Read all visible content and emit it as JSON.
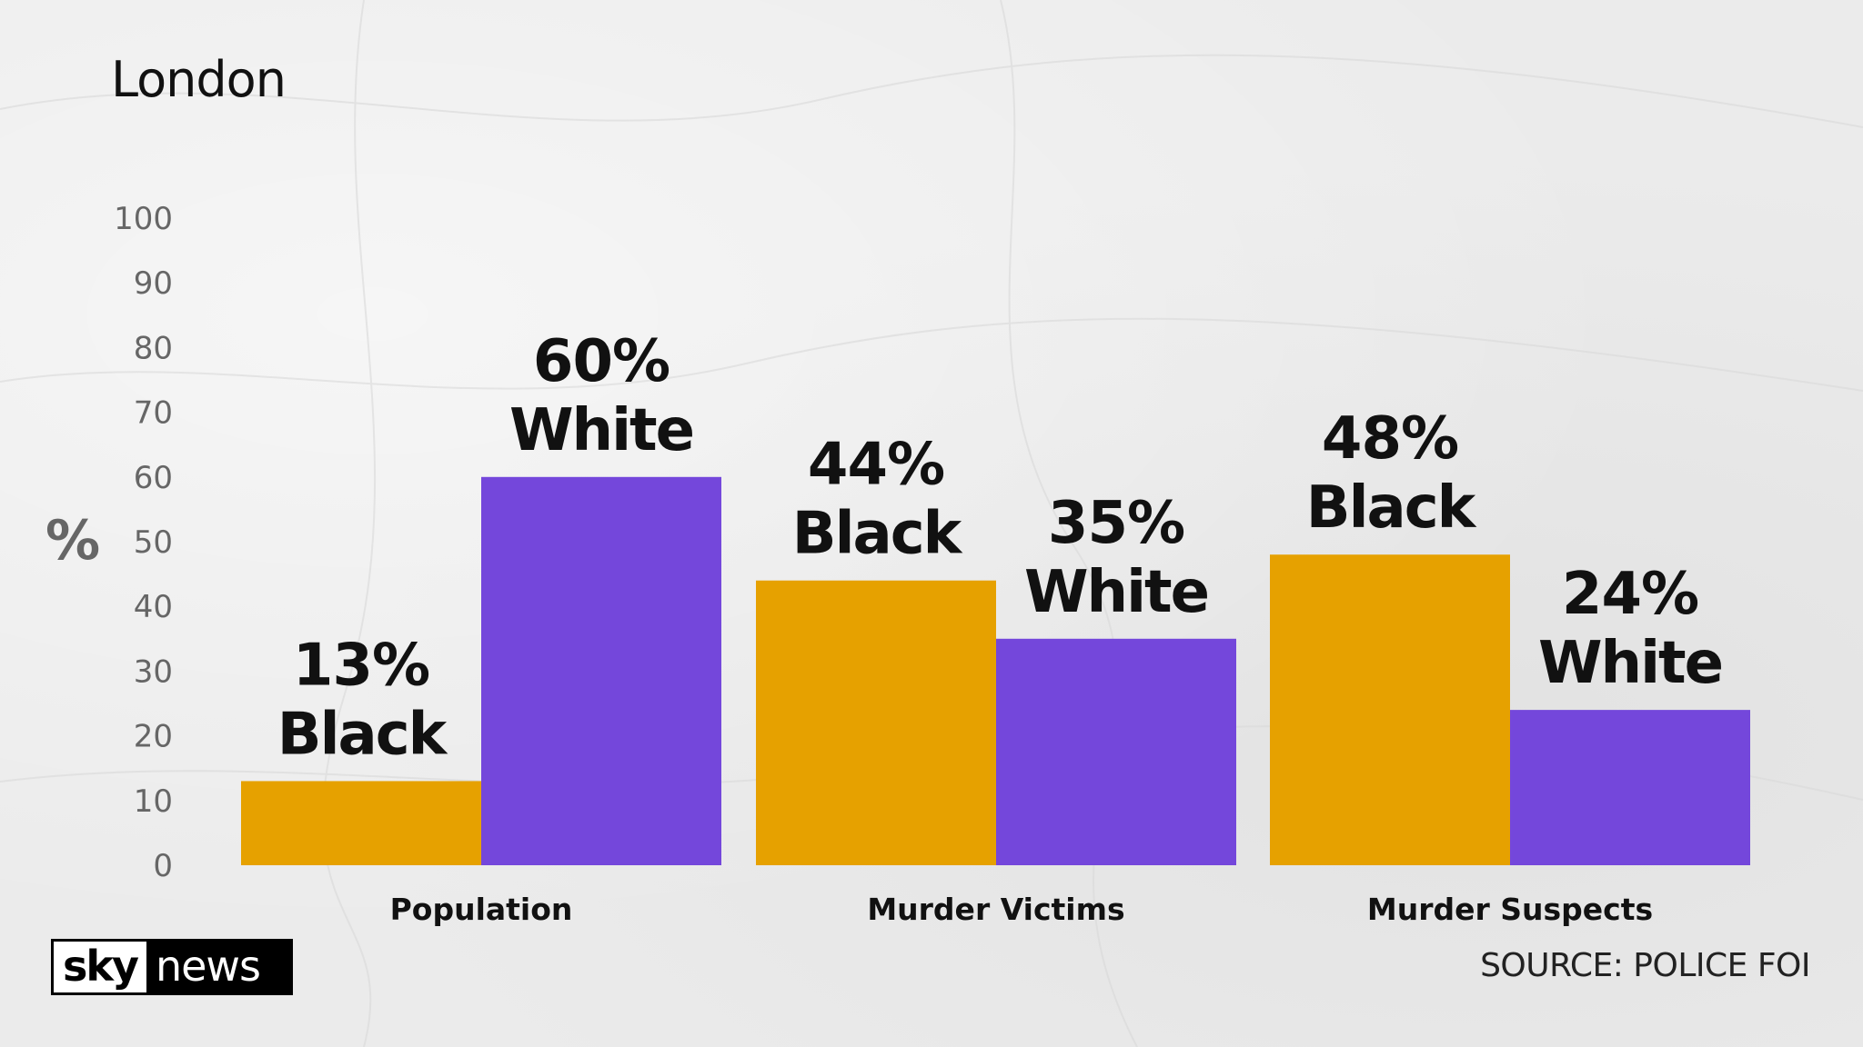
{
  "brand": {
    "sky": "sky",
    "news": "news"
  },
  "source": "SOURCE: POLICE FOI",
  "chart_data": {
    "type": "bar",
    "title": "London",
    "ylabel": "%",
    "ylim": [
      0,
      100
    ],
    "yticks": [
      0,
      10,
      20,
      30,
      40,
      50,
      60,
      70,
      80,
      90,
      100
    ],
    "categories": [
      "Population",
      "Murder Victims",
      "Murder Suspects"
    ],
    "series": [
      {
        "key": "black",
        "color": "#e6a100",
        "values": [
          13,
          44,
          48
        ],
        "labels": [
          [
            "13%",
            "Black"
          ],
          [
            "44%",
            "Black"
          ],
          [
            "48%",
            "Black"
          ]
        ]
      },
      {
        "key": "white",
        "color": "#7447db",
        "values": [
          60,
          35,
          24
        ],
        "labels": [
          [
            "60%",
            "White"
          ],
          [
            "35%",
            "White"
          ],
          [
            "24%",
            "White"
          ]
        ]
      }
    ],
    "grid": false,
    "legend": "none"
  }
}
